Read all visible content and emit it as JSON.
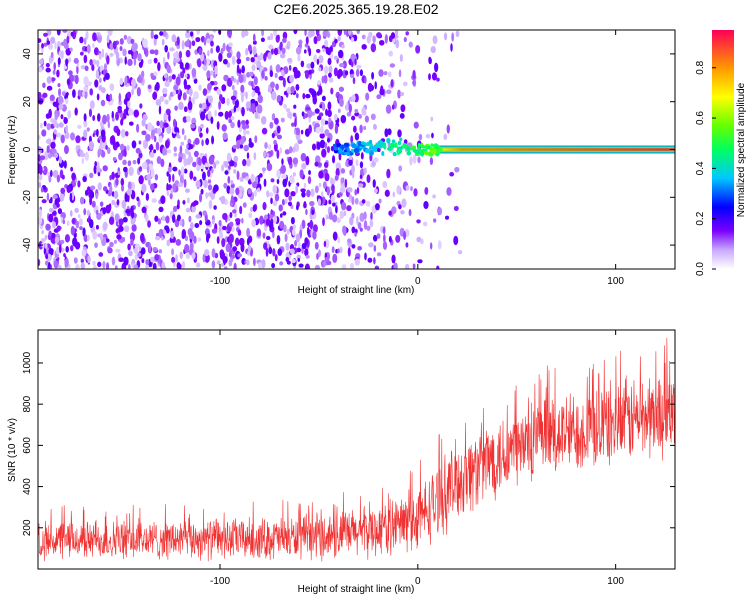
{
  "title": "C2E6.2025.365.19.28.E02",
  "chart_data": [
    {
      "type": "heatmap",
      "xlabel": "Height of straight line (km)",
      "ylabel": "Frequency (Hz)",
      "xlim": [
        -192,
        130
      ],
      "ylim": [
        -50,
        50
      ],
      "x_ticks": [
        -100,
        0,
        100
      ],
      "x_tick_labels": [
        "-100",
        "0",
        "100"
      ],
      "y_ticks": [
        -40,
        -20,
        0,
        20,
        40
      ],
      "y_tick_labels": [
        "-40",
        "-20",
        "0",
        "20",
        "40"
      ],
      "colorbar": {
        "label": "Normalized spectral amplitude",
        "range": [
          0,
          0.95
        ],
        "ticks": [
          "0.0",
          "0.2",
          "0.4",
          "0.6",
          "0.8"
        ],
        "tick_values": [
          0.0,
          0.2,
          0.4,
          0.6,
          0.8
        ]
      },
      "features": {
        "noise_region_x": [
          -192,
          10
        ],
        "noise_amplitude": 0.1,
        "carrier_frequency_hz": 0,
        "carrier_start_km": -45,
        "carrier_amplitude_start": 0.3,
        "carrier_amplitude_end": 0.95
      },
      "grid": false
    },
    {
      "type": "line",
      "color": "#f03232",
      "xlabel": "Height of straight line (km)",
      "ylabel": "SNR (10 * v/v)",
      "xlim": [
        -192,
        130
      ],
      "ylim": [
        0,
        1160
      ],
      "x_ticks": [
        -100,
        0,
        100
      ],
      "x_tick_labels": [
        "-100",
        "0",
        "100"
      ],
      "y_ticks": [
        200,
        400,
        600,
        800,
        1000
      ],
      "y_tick_labels": [
        "200",
        "400",
        "600",
        "800",
        "1000"
      ],
      "series": [
        {
          "x": [
            -192,
            -150,
            -100,
            -60,
            -40,
            -20,
            0,
            10,
            20,
            40,
            60,
            80,
            100,
            115,
            130
          ],
          "mean": [
            140,
            140,
            145,
            150,
            165,
            190,
            240,
            330,
            430,
            550,
            620,
            670,
            710,
            740,
            760
          ],
          "spread": [
            90,
            90,
            95,
            100,
            110,
            120,
            150,
            170,
            190,
            190,
            190,
            190,
            200,
            200,
            200
          ]
        }
      ],
      "grid": false
    }
  ]
}
